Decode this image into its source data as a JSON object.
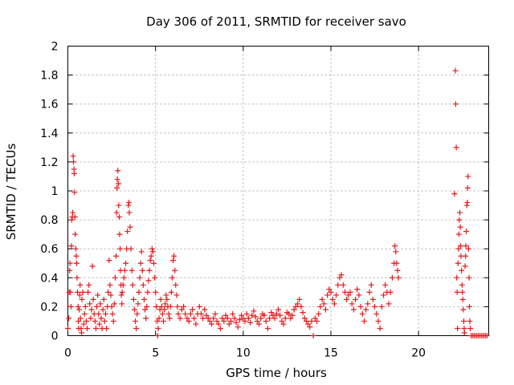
{
  "chart_data": {
    "type": "scatter",
    "title": "Day 306 of 2011, SRMTID for receiver savo",
    "xlabel": "GPS time / hours",
    "ylabel": "SRMTID / TECUs",
    "xlim": [
      0,
      24
    ],
    "ylim": [
      0,
      2
    ],
    "xticks": [
      0,
      5,
      10,
      15,
      20
    ],
    "yticks": [
      0,
      0.2,
      0.4,
      0.6,
      0.8,
      1,
      1.2,
      1.4,
      1.6,
      1.8,
      2
    ],
    "grid": true,
    "marker": "plus",
    "series": [
      {
        "color": "#e41a1c",
        "points": [
          [
            0.0,
            0.05
          ],
          [
            0.05,
            0.12
          ],
          [
            0.08,
            0.3
          ],
          [
            0.1,
            0.45
          ],
          [
            0.12,
            0.5
          ],
          [
            0.15,
            0.3
          ],
          [
            0.18,
            0.2
          ],
          [
            0.2,
            0.62
          ],
          [
            0.22,
            0.8
          ],
          [
            0.25,
            0.82
          ],
          [
            0.28,
            0.85
          ],
          [
            0.3,
            1.24
          ],
          [
            0.32,
            1.2
          ],
          [
            0.35,
            1.15
          ],
          [
            0.36,
            1.12
          ],
          [
            0.38,
            0.99
          ],
          [
            0.4,
            0.82
          ],
          [
            0.42,
            0.7
          ],
          [
            0.45,
            0.6
          ],
          [
            0.48,
            0.55
          ],
          [
            0.5,
            0.5
          ],
          [
            0.52,
            0.4
          ],
          [
            0.55,
            0.3
          ],
          [
            0.58,
            0.2
          ],
          [
            0.6,
            0.1
          ],
          [
            0.62,
            0.05
          ],
          [
            0.65,
            0.18
          ],
          [
            0.68,
            0.28
          ],
          [
            0.7,
            0.35
          ],
          [
            0.72,
            0.12
          ],
          [
            0.75,
            0.05
          ],
          [
            0.78,
            0.02
          ],
          [
            0.8,
            0.25
          ],
          [
            0.85,
            0.3
          ],
          [
            0.9,
            0.08
          ],
          [
            0.95,
            0.15
          ],
          [
            1.0,
            0.2
          ],
          [
            1.05,
            0.1
          ],
          [
            1.1,
            0.05
          ],
          [
            1.15,
            0.3
          ],
          [
            1.2,
            0.35
          ],
          [
            1.25,
            0.22
          ],
          [
            1.3,
            0.12
          ],
          [
            1.35,
            0.18
          ],
          [
            1.4,
            0.48
          ],
          [
            1.45,
            0.25
          ],
          [
            1.5,
            0.15
          ],
          [
            1.55,
            0.1
          ],
          [
            1.6,
            0.05
          ],
          [
            1.65,
            0.2
          ],
          [
            1.7,
            0.28
          ],
          [
            1.75,
            0.15
          ],
          [
            1.8,
            0.08
          ],
          [
            1.85,
            0.22
          ],
          [
            1.9,
            0.12
          ],
          [
            1.95,
            0.05
          ],
          [
            2.0,
            0.18
          ],
          [
            2.05,
            0.25
          ],
          [
            2.1,
            0.1
          ],
          [
            2.15,
            0.15
          ],
          [
            2.2,
            0.05
          ],
          [
            2.25,
            0.2
          ],
          [
            2.3,
            0.3
          ],
          [
            2.35,
            0.52
          ],
          [
            2.4,
            0.35
          ],
          [
            2.45,
            0.28
          ],
          [
            2.5,
            0.2
          ],
          [
            2.55,
            0.15
          ],
          [
            2.6,
            0.1
          ],
          [
            2.65,
            0.22
          ],
          [
            2.7,
            0.4
          ],
          [
            2.75,
            0.55
          ],
          [
            2.78,
            0.85
          ],
          [
            2.8,
            1.02
          ],
          [
            2.82,
            1.08
          ],
          [
            2.85,
            1.14
          ],
          [
            2.88,
            1.05
          ],
          [
            2.9,
            0.9
          ],
          [
            2.93,
            0.82
          ],
          [
            2.95,
            0.7
          ],
          [
            2.98,
            0.6
          ],
          [
            3.0,
            0.45
          ],
          [
            3.03,
            0.35
          ],
          [
            3.05,
            0.28
          ],
          [
            3.08,
            0.22
          ],
          [
            3.1,
            0.3
          ],
          [
            3.15,
            0.35
          ],
          [
            3.2,
            0.4
          ],
          [
            3.25,
            0.45
          ],
          [
            3.3,
            0.5
          ],
          [
            3.35,
            0.6
          ],
          [
            3.4,
            0.72
          ],
          [
            3.45,
            0.9
          ],
          [
            3.48,
            0.92
          ],
          [
            3.5,
            0.85
          ],
          [
            3.55,
            0.75
          ],
          [
            3.6,
            0.6
          ],
          [
            3.65,
            0.45
          ],
          [
            3.7,
            0.35
          ],
          [
            3.75,
            0.25
          ],
          [
            3.8,
            0.18
          ],
          [
            3.85,
            0.1
          ],
          [
            3.9,
            0.05
          ],
          [
            3.95,
            0.15
          ],
          [
            4.0,
            0.22
          ],
          [
            4.05,
            0.3
          ],
          [
            4.1,
            0.4
          ],
          [
            4.15,
            0.5
          ],
          [
            4.2,
            0.58
          ],
          [
            4.25,
            0.45
          ],
          [
            4.3,
            0.35
          ],
          [
            4.35,
            0.25
          ],
          [
            4.4,
            0.18
          ],
          [
            4.45,
            0.12
          ],
          [
            4.5,
            0.2
          ],
          [
            4.55,
            0.3
          ],
          [
            4.6,
            0.38
          ],
          [
            4.65,
            0.45
          ],
          [
            4.7,
            0.52
          ],
          [
            4.75,
            0.55
          ],
          [
            4.8,
            0.6
          ],
          [
            4.85,
            0.58
          ],
          [
            4.9,
            0.5
          ],
          [
            4.95,
            0.4
          ],
          [
            5.0,
            0.3
          ],
          [
            5.05,
            0.2
          ],
          [
            5.1,
            0.1
          ],
          [
            5.12,
            0.0
          ],
          [
            5.15,
            0.05
          ],
          [
            5.2,
            0.12
          ],
          [
            5.25,
            0.18
          ],
          [
            5.3,
            0.25
          ],
          [
            5.35,
            0.2
          ],
          [
            5.4,
            0.15
          ],
          [
            5.45,
            0.1
          ],
          [
            5.5,
            0.18
          ],
          [
            5.55,
            0.22
          ],
          [
            5.6,
            0.28
          ],
          [
            5.65,
            0.25
          ],
          [
            5.7,
            0.2
          ],
          [
            5.75,
            0.15
          ],
          [
            5.8,
            0.12
          ],
          [
            5.85,
            0.2
          ],
          [
            5.9,
            0.3
          ],
          [
            5.95,
            0.4
          ],
          [
            6.0,
            0.52
          ],
          [
            6.05,
            0.55
          ],
          [
            6.1,
            0.45
          ],
          [
            6.15,
            0.35
          ],
          [
            6.2,
            0.28
          ],
          [
            6.25,
            0.2
          ],
          [
            6.3,
            0.15
          ],
          [
            6.4,
            0.12
          ],
          [
            6.5,
            0.18
          ],
          [
            6.6,
            0.2
          ],
          [
            6.7,
            0.15
          ],
          [
            6.8,
            0.12
          ],
          [
            6.9,
            0.1
          ],
          [
            7.0,
            0.15
          ],
          [
            7.1,
            0.18
          ],
          [
            7.2,
            0.12
          ],
          [
            7.3,
            0.08
          ],
          [
            7.4,
            0.15
          ],
          [
            7.5,
            0.2
          ],
          [
            7.6,
            0.15
          ],
          [
            7.7,
            0.12
          ],
          [
            7.8,
            0.18
          ],
          [
            7.9,
            0.14
          ],
          [
            8.0,
            0.12
          ],
          [
            8.1,
            0.1
          ],
          [
            8.2,
            0.08
          ],
          [
            8.3,
            0.12
          ],
          [
            8.4,
            0.15
          ],
          [
            8.5,
            0.1
          ],
          [
            8.6,
            0.08
          ],
          [
            8.7,
            0.05
          ],
          [
            8.8,
            0.12
          ],
          [
            8.9,
            0.1
          ],
          [
            9.0,
            0.14
          ],
          [
            9.1,
            0.12
          ],
          [
            9.2,
            0.08
          ],
          [
            9.3,
            0.1
          ],
          [
            9.4,
            0.15
          ],
          [
            9.5,
            0.12
          ],
          [
            9.6,
            0.09
          ],
          [
            9.7,
            0.06
          ],
          [
            9.8,
            0.11
          ],
          [
            9.9,
            0.14
          ],
          [
            10.0,
            0.12
          ],
          [
            10.1,
            0.1
          ],
          [
            10.2,
            0.15
          ],
          [
            10.3,
            0.12
          ],
          [
            10.4,
            0.09
          ],
          [
            10.5,
            0.14
          ],
          [
            10.6,
            0.17
          ],
          [
            10.7,
            0.13
          ],
          [
            10.8,
            0.1
          ],
          [
            10.9,
            0.08
          ],
          [
            11.0,
            0.12
          ],
          [
            11.1,
            0.15
          ],
          [
            11.2,
            0.14
          ],
          [
            11.3,
            0.1
          ],
          [
            11.4,
            0.05
          ],
          [
            11.5,
            0.12
          ],
          [
            11.6,
            0.16
          ],
          [
            11.7,
            0.14
          ],
          [
            11.8,
            0.12
          ],
          [
            11.9,
            0.15
          ],
          [
            12.0,
            0.18
          ],
          [
            12.1,
            0.14
          ],
          [
            12.2,
            0.1
          ],
          [
            12.3,
            0.08
          ],
          [
            12.4,
            0.12
          ],
          [
            12.5,
            0.16
          ],
          [
            12.6,
            0.15
          ],
          [
            12.7,
            0.12
          ],
          [
            12.8,
            0.14
          ],
          [
            12.9,
            0.18
          ],
          [
            13.0,
            0.2
          ],
          [
            13.1,
            0.22
          ],
          [
            13.2,
            0.25
          ],
          [
            13.3,
            0.2
          ],
          [
            13.4,
            0.16
          ],
          [
            13.5,
            0.12
          ],
          [
            13.6,
            0.1
          ],
          [
            13.7,
            0.08
          ],
          [
            13.8,
            0.06
          ],
          [
            13.9,
            0.1
          ],
          [
            14.0,
            0.0
          ],
          [
            14.1,
            0.12
          ],
          [
            14.2,
            0.1
          ],
          [
            14.3,
            0.15
          ],
          [
            14.4,
            0.2
          ],
          [
            14.5,
            0.25
          ],
          [
            14.6,
            0.22
          ],
          [
            14.7,
            0.18
          ],
          [
            14.8,
            0.28
          ],
          [
            14.9,
            0.32
          ],
          [
            15.0,
            0.3
          ],
          [
            15.1,
            0.25
          ],
          [
            15.2,
            0.22
          ],
          [
            15.3,
            0.28
          ],
          [
            15.4,
            0.35
          ],
          [
            15.5,
            0.4
          ],
          [
            15.6,
            0.42
          ],
          [
            15.7,
            0.35
          ],
          [
            15.8,
            0.3
          ],
          [
            15.9,
            0.25
          ],
          [
            16.0,
            0.28
          ],
          [
            16.1,
            0.3
          ],
          [
            16.2,
            0.22
          ],
          [
            16.3,
            0.18
          ],
          [
            16.4,
            0.25
          ],
          [
            16.5,
            0.32
          ],
          [
            16.6,
            0.28
          ],
          [
            16.7,
            0.2
          ],
          [
            16.8,
            0.15
          ],
          [
            16.9,
            0.1
          ],
          [
            17.0,
            0.18
          ],
          [
            17.1,
            0.22
          ],
          [
            17.2,
            0.3
          ],
          [
            17.3,
            0.35
          ],
          [
            17.4,
            0.25
          ],
          [
            17.5,
            0.2
          ],
          [
            17.6,
            0.15
          ],
          [
            17.7,
            0.1
          ],
          [
            17.8,
            0.05
          ],
          [
            17.9,
            0.2
          ],
          [
            18.0,
            0.28
          ],
          [
            18.1,
            0.35
          ],
          [
            18.2,
            0.3
          ],
          [
            18.3,
            0.22
          ],
          [
            18.4,
            0.3
          ],
          [
            18.5,
            0.4
          ],
          [
            18.6,
            0.5
          ],
          [
            18.65,
            0.62
          ],
          [
            18.7,
            0.58
          ],
          [
            18.75,
            0.5
          ],
          [
            18.8,
            0.45
          ],
          [
            18.85,
            0.4
          ],
          [
            22.05,
            0.98
          ],
          [
            22.1,
            1.83
          ],
          [
            22.12,
            1.6
          ],
          [
            22.15,
            1.3
          ],
          [
            22.18,
            0.4
          ],
          [
            22.2,
            0.3
          ],
          [
            22.22,
            0.05
          ],
          [
            22.25,
            0.5
          ],
          [
            22.28,
            0.6
          ],
          [
            22.3,
            0.7
          ],
          [
            22.32,
            0.8
          ],
          [
            22.35,
            0.85
          ],
          [
            22.38,
            0.75
          ],
          [
            22.4,
            0.62
          ],
          [
            22.42,
            0.55
          ],
          [
            22.45,
            0.45
          ],
          [
            22.48,
            0.35
          ],
          [
            22.5,
            0.3
          ],
          [
            22.52,
            0.25
          ],
          [
            22.55,
            0.18
          ],
          [
            22.58,
            0.1
          ],
          [
            22.6,
            0.05
          ],
          [
            22.62,
            0.02
          ],
          [
            22.65,
            0.48
          ],
          [
            22.68,
            0.55
          ],
          [
            22.7,
            0.62
          ],
          [
            22.72,
            0.72
          ],
          [
            22.75,
            0.9
          ],
          [
            22.78,
            0.92
          ],
          [
            22.8,
            1.02
          ],
          [
            22.82,
            1.1
          ],
          [
            22.85,
            0.6
          ],
          [
            22.88,
            0.4
          ],
          [
            22.9,
            0.2
          ],
          [
            22.92,
            0.1
          ],
          [
            22.95,
            0.05
          ],
          [
            23.0,
            0.0
          ],
          [
            23.1,
            0.0
          ],
          [
            23.2,
            0.0
          ],
          [
            23.3,
            0.0
          ],
          [
            23.4,
            0.0
          ],
          [
            23.5,
            0.0
          ],
          [
            23.6,
            0.0
          ],
          [
            23.7,
            0.0
          ],
          [
            23.8,
            0.0
          ],
          [
            23.9,
            0.0
          ]
        ]
      }
    ]
  }
}
